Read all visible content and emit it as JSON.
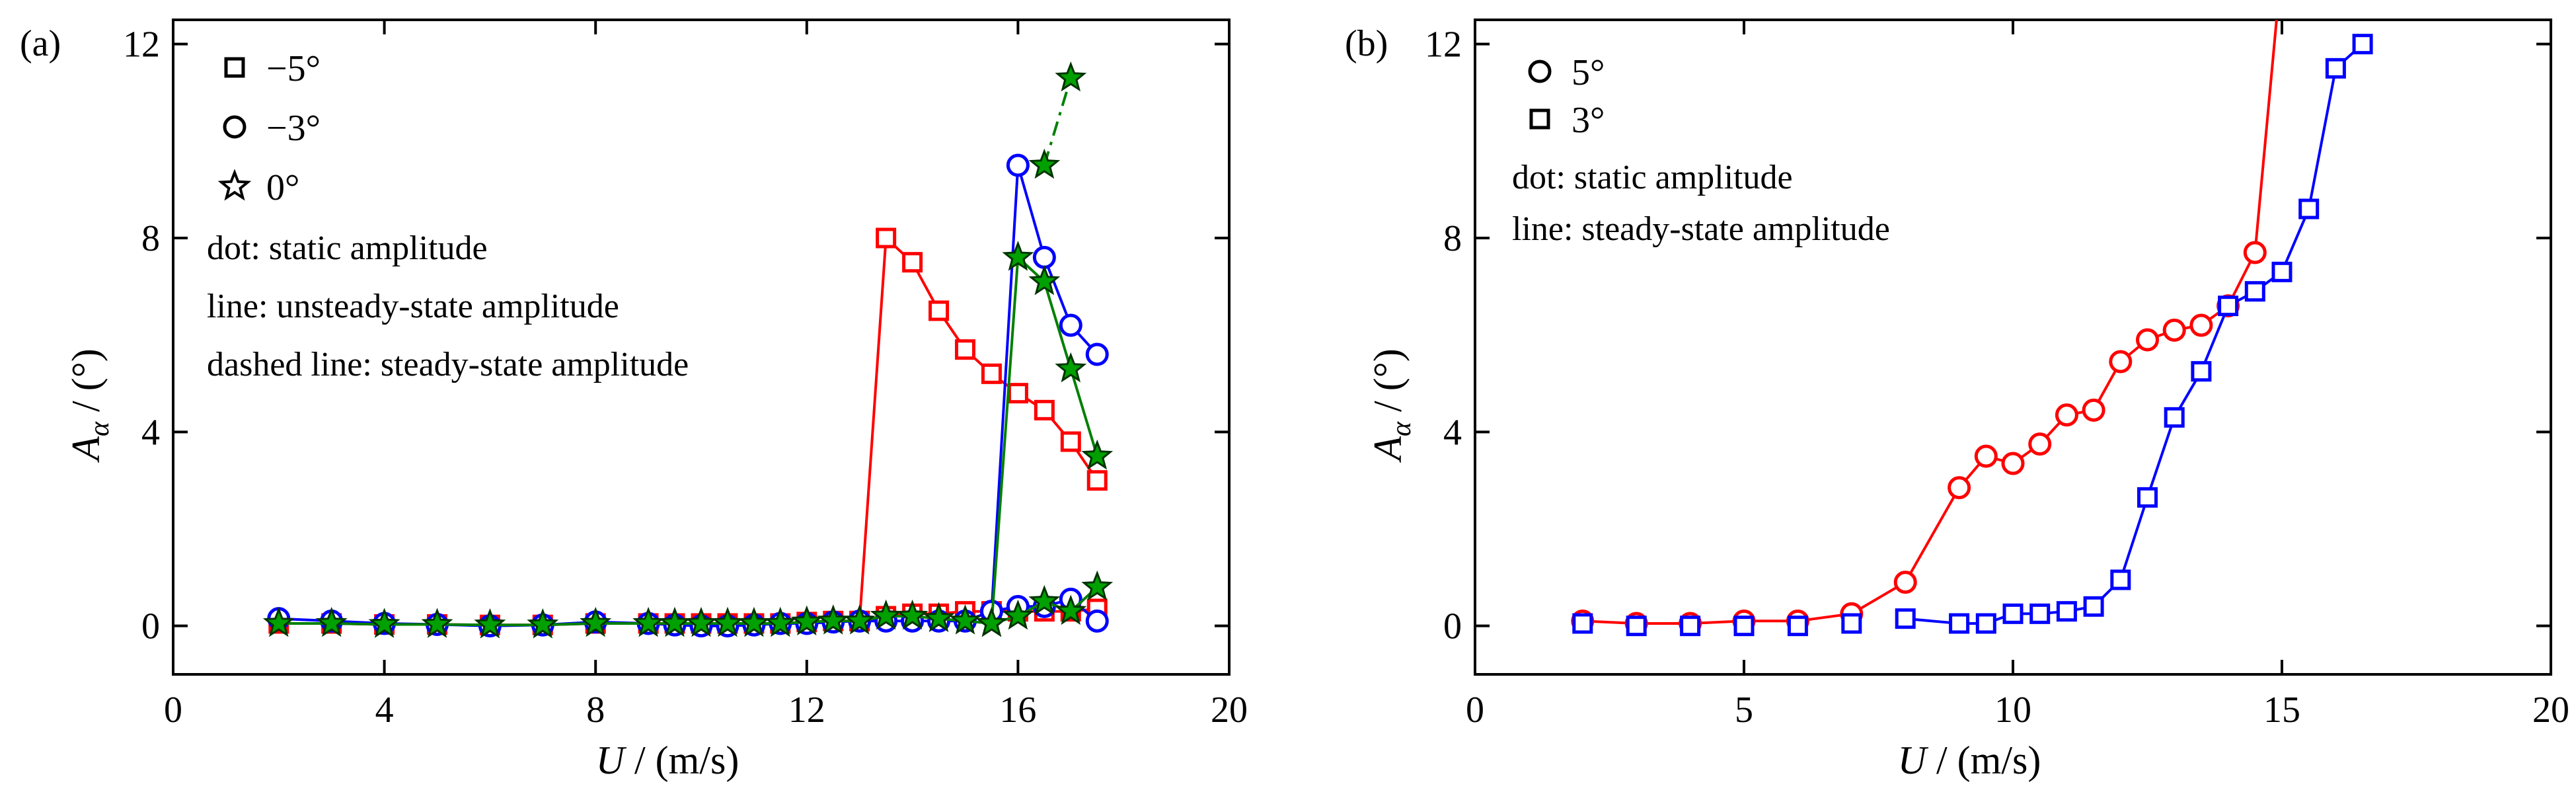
{
  "chart_data": [
    {
      "type": "scatter",
      "panel_label": "(a)",
      "xlabel": {
        "italic": "U",
        "rest": " / (m/s)"
      },
      "ylabel": {
        "italic": "A",
        "sub": "α",
        "rest": " / (°)"
      },
      "xlim": [
        0,
        20
      ],
      "ylim": [
        -1,
        12.5
      ],
      "xticks": [
        0,
        4,
        8,
        12,
        16,
        20
      ],
      "yticks": [
        0,
        4,
        8,
        12
      ],
      "grid": false,
      "legend": {
        "placement": "top-left",
        "entries": [
          {
            "marker": "square",
            "label": "−5°"
          },
          {
            "marker": "circle",
            "label": "−3°"
          },
          {
            "marker": "star",
            "label": "0°"
          }
        ],
        "notes": [
          "dot: static amplitude",
          "line: unsteady-state amplitude",
          "dashed line: steady-state amplitude"
        ]
      },
      "series": [
        {
          "key": "-5 static",
          "color": "#ff0000",
          "marker": "square",
          "line": "solid",
          "x": [
            2,
            3,
            4,
            5,
            6,
            7,
            8,
            9,
            9.5,
            10,
            10.5,
            11,
            11.5,
            12,
            12.5,
            13,
            13.5,
            14,
            14.5,
            15,
            15.5,
            16,
            16.5,
            17,
            17.5
          ],
          "y": [
            0.05,
            0.05,
            0.03,
            0.03,
            0.02,
            0.02,
            0.05,
            0.05,
            0.05,
            0.05,
            0.05,
            0.05,
            0.05,
            0.08,
            0.1,
            0.1,
            0.2,
            0.25,
            0.25,
            0.3,
            0.3,
            0.3,
            0.3,
            0.3,
            0.35
          ]
        },
        {
          "key": "-5 unsteady",
          "color": "#ff0000",
          "marker": "square",
          "line": "solid",
          "x": [
            13,
            13.5,
            14,
            14.5,
            15,
            15.5,
            16,
            16.5,
            17,
            17.5
          ],
          "y": [
            0.1,
            8.0,
            7.5,
            6.5,
            5.7,
            5.2,
            4.8,
            4.45,
            3.8,
            3.0
          ]
        },
        {
          "key": "-3 static",
          "color": "#0000ff",
          "marker": "circle",
          "line": "solid",
          "x": [
            2,
            3,
            4,
            5,
            6,
            7,
            8,
            9,
            9.5,
            10,
            10.5,
            11,
            11.5,
            12,
            12.5,
            13,
            13.5,
            14,
            14.5,
            15,
            15.5,
            16,
            16.5,
            17,
            17.5
          ],
          "y": [
            0.15,
            0.1,
            0.05,
            0.03,
            0.0,
            0.02,
            0.08,
            0.05,
            0.02,
            0.0,
            0.0,
            0.02,
            0.05,
            0.05,
            0.08,
            0.1,
            0.1,
            0.1,
            0.1,
            0.1,
            0.3,
            0.4,
            0.4,
            0.55,
            0.1
          ]
        },
        {
          "key": "-3 unsteady",
          "color": "#0000ff",
          "marker": "circle",
          "line": "solid",
          "x": [
            15.5,
            16,
            16.5,
            17,
            17.5
          ],
          "y": [
            0.3,
            9.5,
            7.6,
            6.2,
            5.6
          ]
        },
        {
          "key": "0 static",
          "color": "#008000",
          "marker": "star",
          "line": "solid",
          "x": [
            2,
            3,
            4,
            5,
            6,
            7,
            8,
            9,
            9.5,
            10,
            10.5,
            11,
            11.5,
            12,
            12.5,
            13,
            13.5,
            14,
            14.5,
            15,
            15.5,
            16,
            16.5,
            17,
            17.5
          ],
          "y": [
            0.05,
            0.05,
            0.03,
            0.03,
            0.02,
            0.02,
            0.05,
            0.05,
            0.05,
            0.05,
            0.05,
            0.05,
            0.05,
            0.08,
            0.1,
            0.1,
            0.2,
            0.2,
            0.15,
            0.1,
            0.05,
            0.2,
            0.5,
            0.3,
            0.8
          ]
        },
        {
          "key": "0 unsteady",
          "color": "#008000",
          "marker": "star",
          "line": "solid",
          "x": [
            15.5,
            16,
            16.5,
            17,
            17.5
          ],
          "y": [
            0.05,
            7.6,
            7.1,
            5.3,
            3.5
          ]
        },
        {
          "key": "0 steady",
          "color": "#008000",
          "marker": "star",
          "line": "dashdot",
          "x": [
            16.5,
            17
          ],
          "y": [
            9.5,
            11.3
          ]
        }
      ]
    },
    {
      "type": "scatter",
      "panel_label": "(b)",
      "xlabel": {
        "italic": "U",
        "rest": " / (m/s)"
      },
      "ylabel": {
        "italic": "A",
        "sub": "α",
        "rest": " / (°)"
      },
      "xlim": [
        0,
        20
      ],
      "ylim": [
        -1,
        12.5
      ],
      "xticks": [
        0,
        5,
        10,
        15,
        20
      ],
      "yticks": [
        0,
        4,
        8,
        12
      ],
      "grid": false,
      "legend": {
        "placement": "top-left",
        "entries": [
          {
            "marker": "circle",
            "label": "5°"
          },
          {
            "marker": "square",
            "label": "3°"
          }
        ],
        "notes": [
          "dot: static amplitude",
          "line: steady-state amplitude"
        ]
      },
      "series": [
        {
          "key": "5",
          "color": "#ff0000",
          "marker": "circle",
          "line": "solid",
          "x": [
            2,
            3,
            4,
            5,
            6,
            7,
            8,
            9,
            9.5,
            10,
            10.5,
            11,
            11.5,
            12,
            12.5,
            13,
            13.5,
            14,
            14.5,
            14.9
          ],
          "y": [
            0.1,
            0.05,
            0.05,
            0.1,
            0.1,
            0.25,
            0.9,
            2.85,
            3.5,
            3.35,
            3.75,
            4.35,
            4.45,
            5.45,
            5.9,
            6.1,
            6.2,
            6.6,
            7.7,
            12.5
          ],
          "markers": 19
        },
        {
          "key": "3",
          "color": "#0000ff",
          "marker": "square",
          "line": "solid",
          "x": [
            2,
            3,
            4,
            5,
            6,
            7,
            8,
            9,
            9.5,
            10,
            10.5,
            11,
            11.5,
            12,
            12.5,
            13,
            13.5,
            14,
            14.5,
            15,
            15.5,
            16,
            16.5
          ],
          "y": [
            0.05,
            0.0,
            0.0,
            0.0,
            0.0,
            0.05,
            0.15,
            0.05,
            0.05,
            0.25,
            0.25,
            0.3,
            0.4,
            0.95,
            2.65,
            4.3,
            5.25,
            6.6,
            6.9,
            7.3,
            8.6,
            11.5,
            12.0
          ],
          "line_from": 6
        }
      ]
    }
  ]
}
